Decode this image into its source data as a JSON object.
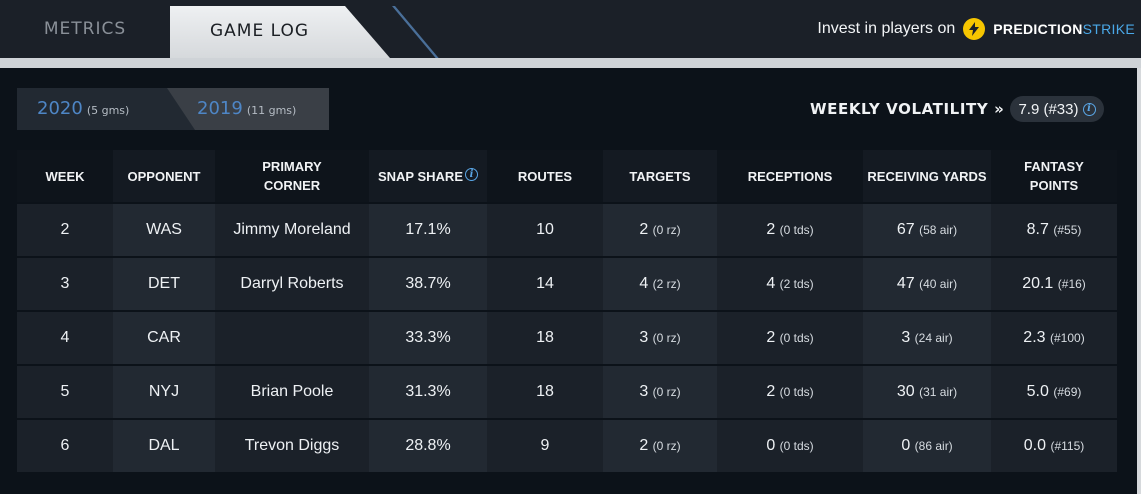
{
  "tabs": [
    {
      "label": "METRICS"
    },
    {
      "label": "GAME LOG"
    }
  ],
  "promo": {
    "text": "Invest in players on",
    "brand_bold": "PREDICTION",
    "brand_light": "STRIKE",
    "brand_color": "#f6c500"
  },
  "seasons": [
    {
      "year": "2020",
      "games": "(5 gms)"
    },
    {
      "year": "2019",
      "games": "(11 gms)"
    }
  ],
  "volatility": {
    "label": "WEEKLY VOLATILITY",
    "arrow": "»",
    "value": "7.9 (#33)"
  },
  "table": {
    "headers": [
      "WEEK",
      "OPPONENT",
      "PRIMARY CORNER",
      "SNAP SHARE",
      "ROUTES",
      "TARGETS",
      "RECEPTIONS",
      "RECEIVING YARDS",
      "FANTASY POINTS"
    ],
    "rows": [
      {
        "week": "2",
        "opponent": "WAS",
        "corner": "Jimmy Moreland",
        "snap": "17.1%",
        "routes": "10",
        "targets": "2",
        "targets_sub": "(0 rz)",
        "receptions": "2",
        "receptions_sub": "(0 tds)",
        "yards": "67",
        "yards_sub": "(58 air)",
        "points": "8.7",
        "points_sub": "(#55)"
      },
      {
        "week": "3",
        "opponent": "DET",
        "corner": "Darryl Roberts",
        "snap": "38.7%",
        "routes": "14",
        "targets": "4",
        "targets_sub": "(2 rz)",
        "receptions": "4",
        "receptions_sub": "(2 tds)",
        "yards": "47",
        "yards_sub": "(40 air)",
        "points": "20.1",
        "points_sub": "(#16)"
      },
      {
        "week": "4",
        "opponent": "CAR",
        "corner": "",
        "snap": "33.3%",
        "routes": "18",
        "targets": "3",
        "targets_sub": "(0 rz)",
        "receptions": "2",
        "receptions_sub": "(0 tds)",
        "yards": "3",
        "yards_sub": "(24 air)",
        "points": "2.3",
        "points_sub": "(#100)"
      },
      {
        "week": "5",
        "opponent": "NYJ",
        "corner": "Brian Poole",
        "snap": "31.3%",
        "routes": "18",
        "targets": "3",
        "targets_sub": "(0 rz)",
        "receptions": "2",
        "receptions_sub": "(0 tds)",
        "yards": "30",
        "yards_sub": "(31 air)",
        "points": "5.0",
        "points_sub": "(#69)"
      },
      {
        "week": "6",
        "opponent": "DAL",
        "corner": "Trevon Diggs",
        "snap": "28.8%",
        "routes": "9",
        "targets": "2",
        "targets_sub": "(0 rz)",
        "receptions": "0",
        "receptions_sub": "(0 tds)",
        "yards": "0",
        "yards_sub": "(86 air)",
        "points": "0.0",
        "points_sub": "(#115)"
      }
    ]
  }
}
